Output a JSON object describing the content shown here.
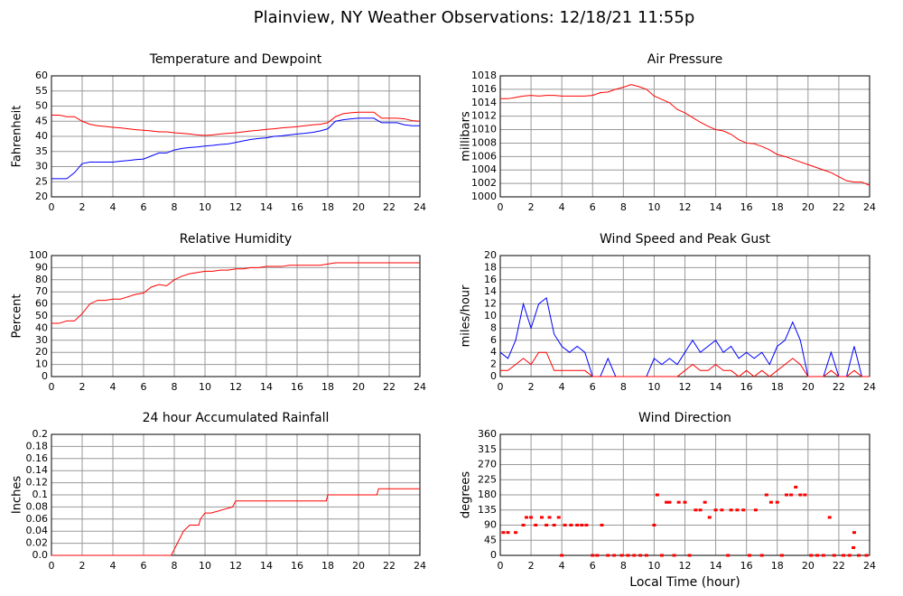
{
  "title": "Plainview, NY Weather Observations: 12/18/21 11:55p",
  "chart_data": [
    {
      "type": "line",
      "title": "Temperature and Dewpoint",
      "ylabel": "Fahrenheit",
      "x": [
        0,
        0.5,
        1,
        1.5,
        2,
        2.5,
        3,
        3.5,
        4,
        4.5,
        5,
        5.5,
        6,
        6.5,
        7,
        7.5,
        8,
        8.5,
        9,
        9.5,
        10,
        10.5,
        11,
        11.5,
        12,
        12.5,
        13,
        13.5,
        14,
        14.5,
        15,
        15.5,
        16,
        16.5,
        17,
        17.5,
        18,
        18.5,
        19,
        19.5,
        20,
        20.5,
        21,
        21.5,
        22,
        22.5,
        23,
        23.5,
        24
      ],
      "series": [
        {
          "color": "#ff0000",
          "values": [
            47,
            47,
            46.5,
            46.5,
            45,
            44,
            43.5,
            43.3,
            43,
            42.8,
            42.5,
            42.2,
            42,
            41.8,
            41.5,
            41.5,
            41.2,
            41,
            40.8,
            40.5,
            40.3,
            40.5,
            40.8,
            41,
            41.2,
            41.5,
            41.8,
            42,
            42.3,
            42.5,
            42.8,
            43,
            43.2,
            43.5,
            43.8,
            44,
            44.5,
            46.5,
            47.5,
            47.8,
            48,
            48,
            48,
            46,
            46,
            46,
            45.8,
            45.2,
            45
          ]
        },
        {
          "color": "#0000ff",
          "values": [
            26,
            26,
            26,
            28,
            31,
            31.5,
            31.5,
            31.5,
            31.5,
            31.8,
            32,
            32.3,
            32.5,
            33.5,
            34.5,
            34.5,
            35.5,
            36,
            36.3,
            36.5,
            36.8,
            37,
            37.3,
            37.5,
            38,
            38.5,
            39,
            39.3,
            39.5,
            40,
            40.2,
            40.5,
            40.8,
            41,
            41.3,
            41.8,
            42.5,
            45,
            45.5,
            45.8,
            46,
            46,
            46,
            44.5,
            44.5,
            44.5,
            43.8,
            43.5,
            43.5
          ]
        }
      ],
      "xlim": [
        0,
        24
      ],
      "xticks": [
        0,
        2,
        4,
        6,
        8,
        10,
        12,
        14,
        16,
        18,
        20,
        22,
        24
      ],
      "ylim": [
        20,
        60
      ],
      "yticks": [
        20,
        25,
        30,
        35,
        40,
        45,
        50,
        55,
        60
      ],
      "grid": true
    },
    {
      "type": "line",
      "title": "Air Pressure",
      "ylabel": "millibars",
      "x": [
        0,
        0.5,
        1,
        1.5,
        2,
        2.5,
        3,
        3.5,
        4,
        4.5,
        5,
        5.5,
        6,
        6.5,
        7,
        7.5,
        8,
        8.5,
        9,
        9.5,
        10,
        10.5,
        11,
        11.5,
        12,
        12.5,
        13,
        13.5,
        14,
        14.5,
        15,
        15.5,
        16,
        16.5,
        17,
        17.5,
        18,
        18.5,
        19,
        19.5,
        20,
        20.5,
        21,
        21.5,
        22,
        22.5,
        23,
        23.5,
        24
      ],
      "series": [
        {
          "color": "#ff0000",
          "values": [
            1014.6,
            1014.6,
            1014.8,
            1015,
            1015.1,
            1015,
            1015.1,
            1015.1,
            1015,
            1015,
            1015,
            1015,
            1015.1,
            1015.5,
            1015.6,
            1016,
            1016.3,
            1016.7,
            1016.4,
            1016,
            1015,
            1014.5,
            1014,
            1013,
            1012.5,
            1011.8,
            1011.1,
            1010.5,
            1010,
            1009.8,
            1009.3,
            1008.5,
            1008,
            1007.9,
            1007.5,
            1007,
            1006.3,
            1006,
            1005.6,
            1005.2,
            1004.8,
            1004.4,
            1004,
            1003.6,
            1003,
            1002.4,
            1002.2,
            1002.2,
            1001.7
          ]
        }
      ],
      "xlim": [
        0,
        24
      ],
      "xticks": [
        0,
        2,
        4,
        6,
        8,
        10,
        12,
        14,
        16,
        18,
        20,
        22,
        24
      ],
      "ylim": [
        1000,
        1018
      ],
      "yticks": [
        1000,
        1002,
        1004,
        1006,
        1008,
        1010,
        1012,
        1014,
        1016,
        1018
      ],
      "grid": true
    },
    {
      "type": "line",
      "title": "Relative Humidity",
      "ylabel": "Percent",
      "x": [
        0,
        0.5,
        1,
        1.5,
        2,
        2.5,
        3,
        3.5,
        4,
        4.5,
        5,
        5.5,
        6,
        6.5,
        7,
        7.5,
        8,
        8.5,
        9,
        9.5,
        10,
        10.5,
        11,
        11.5,
        12,
        12.5,
        13,
        13.5,
        14,
        14.5,
        15,
        15.5,
        16,
        16.5,
        17,
        17.5,
        18,
        18.5,
        19,
        19.5,
        20,
        20.5,
        21,
        21.5,
        22,
        22.5,
        23,
        23.5,
        24
      ],
      "series": [
        {
          "color": "#ff0000",
          "values": [
            44,
            44,
            46,
            46,
            52,
            60,
            63,
            63,
            64,
            64,
            66,
            68,
            69,
            74,
            76,
            75,
            80,
            83,
            85,
            86,
            87,
            87,
            88,
            88,
            89,
            89,
            90,
            90,
            91,
            91,
            91,
            92,
            92,
            92,
            92,
            92,
            93,
            94,
            94,
            94,
            94,
            94,
            94,
            94,
            94,
            94,
            94,
            94,
            94
          ]
        }
      ],
      "xlim": [
        0,
        24
      ],
      "xticks": [
        0,
        2,
        4,
        6,
        8,
        10,
        12,
        14,
        16,
        18,
        20,
        22,
        24
      ],
      "ylim": [
        0,
        100
      ],
      "yticks": [
        0,
        10,
        20,
        30,
        40,
        50,
        60,
        70,
        80,
        90,
        100
      ],
      "grid": true
    },
    {
      "type": "line",
      "title": "Wind Speed and Peak Gust",
      "ylabel": "miles/hour",
      "x": [
        0,
        0.5,
        1,
        1.5,
        2,
        2.5,
        3,
        3.5,
        4,
        4.5,
        5,
        5.5,
        6,
        6.5,
        7,
        7.5,
        8,
        8.5,
        9,
        9.5,
        10,
        10.5,
        11,
        11.5,
        12,
        12.5,
        13,
        13.5,
        14,
        14.5,
        15,
        15.5,
        16,
        16.5,
        17,
        17.5,
        18,
        18.5,
        19,
        19.5,
        20,
        20.5,
        21,
        21.5,
        22,
        22.5,
        23,
        23.5,
        24
      ],
      "series": [
        {
          "color": "#0000ff",
          "values": [
            4,
            3,
            6,
            12,
            8,
            12,
            13,
            7,
            5,
            4,
            5,
            4,
            0,
            0,
            3,
            0,
            0,
            0,
            0,
            0,
            3,
            2,
            3,
            2,
            4,
            6,
            4,
            5,
            6,
            4,
            5,
            3,
            4,
            3,
            4,
            2,
            5,
            6,
            9,
            6,
            0,
            0,
            0,
            4,
            0,
            0,
            5,
            0,
            0
          ]
        },
        {
          "color": "#ff0000",
          "values": [
            1,
            1,
            2,
            3,
            2,
            4,
            4,
            1,
            1,
            1,
            1,
            1,
            0,
            0,
            0,
            0,
            0,
            0,
            0,
            0,
            0,
            0,
            0,
            0,
            1,
            2,
            1,
            1,
            2,
            1,
            1,
            0,
            1,
            0,
            1,
            0,
            1,
            2,
            3,
            2,
            0,
            0,
            0,
            1,
            0,
            0,
            1,
            0,
            0
          ]
        }
      ],
      "xlim": [
        0,
        24
      ],
      "xticks": [
        0,
        2,
        4,
        6,
        8,
        10,
        12,
        14,
        16,
        18,
        20,
        22,
        24
      ],
      "ylim": [
        0,
        20
      ],
      "yticks": [
        0,
        2,
        4,
        6,
        8,
        10,
        12,
        14,
        16,
        18,
        20
      ],
      "grid": true
    },
    {
      "type": "line",
      "title": "24 hour Accumulated Rainfall",
      "ylabel": "Inches",
      "x": [
        0,
        7.8,
        8,
        8.2,
        8.4,
        8.6,
        9,
        9.6,
        9.7,
        10,
        10.4,
        11.8,
        12,
        17.9,
        18,
        21.2,
        21.3,
        24
      ],
      "series": [
        {
          "color": "#ff0000",
          "values": [
            0,
            0,
            0.01,
            0.02,
            0.03,
            0.04,
            0.05,
            0.05,
            0.06,
            0.07,
            0.07,
            0.08,
            0.09,
            0.09,
            0.1,
            0.1,
            0.11,
            0.11
          ]
        }
      ],
      "xlim": [
        0,
        24
      ],
      "xticks": [
        0,
        2,
        4,
        6,
        8,
        10,
        12,
        14,
        16,
        18,
        20,
        22,
        24
      ],
      "ylim": [
        0,
        0.2
      ],
      "yticks": [
        {
          "value": 0,
          "label": "0.0"
        },
        0.02,
        0.04,
        0.06,
        0.08,
        0.1,
        0.12,
        0.14,
        0.16,
        0.18,
        0.2
      ],
      "grid": true
    },
    {
      "type": "scatter",
      "title": "Wind Direction",
      "ylabel": "degrees",
      "xlabel": "Local Time (hour)",
      "x": [
        0.2,
        0.5,
        1,
        1.5,
        1.7,
        2,
        2.3,
        2.7,
        3,
        3.2,
        3.5,
        3.8,
        4,
        4.2,
        4.6,
        5,
        5.3,
        5.6,
        6,
        6.3,
        6.6,
        7,
        7.4,
        7.9,
        8.3,
        8.7,
        9.1,
        9.5,
        10,
        10.2,
        10.5,
        10.8,
        11,
        11.3,
        11.6,
        12,
        12.3,
        12.7,
        13,
        13.3,
        13.6,
        14,
        14.4,
        14.8,
        15,
        15.4,
        15.8,
        16.2,
        16.6,
        17,
        17.3,
        17.6,
        18,
        18.3,
        18.6,
        18.9,
        19.2,
        19.5,
        19.8,
        20.2,
        20.6,
        21,
        21.4,
        21.7,
        22.3,
        22.7,
        23,
        22.95,
        23.3,
        23.8
      ],
      "series": [
        {
          "color": "#ff0000",
          "values": [
            68,
            68,
            68,
            90,
            113,
            113,
            90,
            113,
            90,
            113,
            90,
            113,
            0,
            90,
            90,
            90,
            90,
            90,
            0,
            0,
            90,
            0,
            0,
            0,
            0,
            0,
            0,
            0,
            90,
            180,
            0,
            158,
            158,
            0,
            158,
            158,
            0,
            135,
            135,
            158,
            113,
            135,
            135,
            0,
            135,
            135,
            135,
            0,
            135,
            0,
            180,
            158,
            158,
            0,
            180,
            180,
            203,
            180,
            180,
            0,
            0,
            0,
            113,
            0,
            0,
            0,
            68,
            23,
            0,
            0
          ]
        }
      ],
      "xlim": [
        0,
        24
      ],
      "xticks": [
        0,
        2,
        4,
        6,
        8,
        10,
        12,
        14,
        16,
        18,
        20,
        22,
        24
      ],
      "ylim": [
        0,
        360
      ],
      "yticks": [
        0,
        45,
        90,
        135,
        180,
        225,
        270,
        315,
        360
      ],
      "grid": true
    }
  ]
}
